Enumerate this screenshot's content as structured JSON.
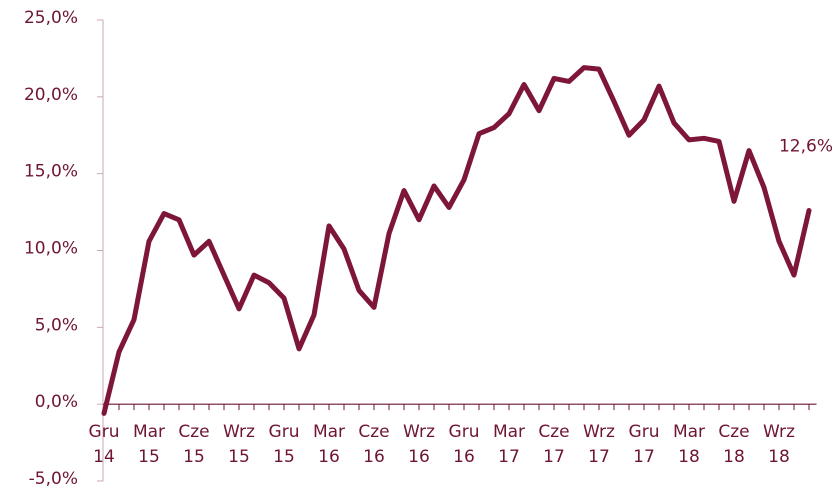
{
  "chart_data": {
    "type": "line",
    "categories": [
      "Gru 14",
      null,
      null,
      "Mar 15",
      null,
      null,
      "Cze 15",
      null,
      null,
      "Wrz 15",
      null,
      null,
      "Gru 15",
      null,
      null,
      "Mar 16",
      null,
      null,
      "Cze 16",
      null,
      null,
      "Wrz 16",
      null,
      null,
      "Gru 16",
      null,
      null,
      "Mar 17",
      null,
      null,
      "Cze 17",
      null,
      null,
      "Wrz 17",
      null,
      null,
      "Gru 17",
      null,
      null,
      "Mar 18",
      null,
      null,
      "Cze 18",
      null,
      null,
      "Wrz 18",
      null,
      null
    ],
    "values": [
      -0.6,
      3.4,
      5.5,
      10.6,
      12.4,
      12.0,
      9.7,
      10.6,
      8.4,
      6.2,
      8.4,
      7.9,
      6.9,
      3.6,
      5.8,
      11.6,
      10.1,
      7.4,
      6.3,
      11.1,
      13.9,
      12.0,
      14.2,
      12.8,
      14.6,
      17.6,
      18.0,
      18.9,
      20.8,
      19.1,
      21.2,
      21.0,
      21.9,
      21.8,
      19.7,
      17.5,
      18.5,
      20.7,
      18.3,
      17.2,
      17.3,
      17.1,
      13.2,
      16.5,
      14.1,
      10.6,
      8.4,
      12.6
    ],
    "value_labels": [
      null,
      null,
      null,
      null,
      null,
      null,
      null,
      null,
      null,
      null,
      null,
      null,
      null,
      null,
      null,
      null,
      null,
      null,
      null,
      null,
      null,
      null,
      null,
      null,
      null,
      null,
      null,
      null,
      null,
      null,
      null,
      null,
      null,
      null,
      null,
      null,
      null,
      null,
      null,
      null,
      null,
      null,
      null,
      null,
      null,
      null,
      null,
      "12,6%"
    ],
    "color": "#7d1638",
    "ylim": [
      -5,
      25
    ],
    "yticks": [
      {
        "value": -5,
        "label": "-5,0%"
      },
      {
        "value": 0,
        "label": "0,0%"
      },
      {
        "value": 5,
        "label": "5,0%"
      },
      {
        "value": 10,
        "label": "10,0%"
      },
      {
        "value": 15,
        "label": "15,0%"
      },
      {
        "value": 20,
        "label": "20,0%"
      },
      {
        "value": 25,
        "label": "25,0%"
      }
    ]
  }
}
